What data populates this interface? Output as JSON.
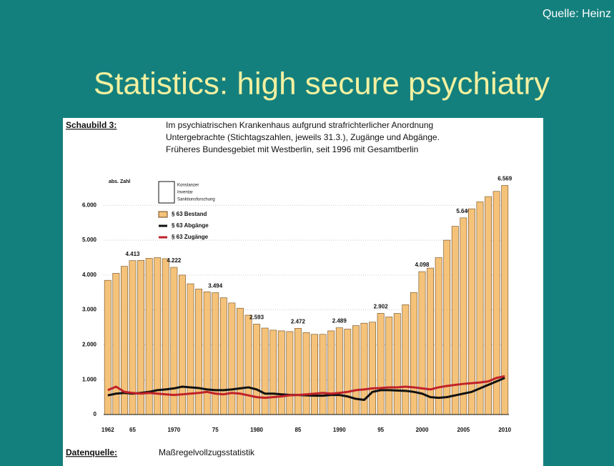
{
  "slide": {
    "source": "Quelle: Heinz",
    "title": "Statistics: high secure psychiatry"
  },
  "chart_data": {
    "type": "bar",
    "figure_label": "Schaubild 3:",
    "title_lines": [
      "Im psychiatrischen Krankenhaus aufgrund strafrichterlicher Anordnung",
      "Untergebrachte (Stichtagszahlen, jeweils 31.3.), Zugänge und Abgänge.",
      "Früheres Bundesgebiet mit Westberlin, seit 1996 mit Gesamtberlin"
    ],
    "y_label": "abs. Zahl",
    "logo": [
      "Konstanzer",
      "Inventar",
      "Sanktionsforschung"
    ],
    "categories": [
      "1962",
      null,
      null,
      "65",
      null,
      null,
      null,
      null,
      "1970",
      null,
      null,
      null,
      null,
      "75",
      null,
      null,
      null,
      null,
      "1980",
      null,
      null,
      null,
      null,
      "85",
      null,
      null,
      null,
      null,
      "1990",
      null,
      null,
      null,
      null,
      "95",
      null,
      null,
      null,
      null,
      "2000",
      null,
      null,
      null,
      null,
      "2005",
      null,
      null,
      null,
      null,
      "2010"
    ],
    "series": [
      {
        "name": "§ 63 Bestand",
        "type": "bar",
        "color": "#f5c27a",
        "values": [
          3850,
          4050,
          4250,
          4413,
          4420,
          4480,
          4500,
          4470,
          4222,
          4000,
          3750,
          3600,
          3520,
          3494,
          3350,
          3200,
          3050,
          2850,
          2593,
          2480,
          2420,
          2400,
          2380,
          2472,
          2350,
          2300,
          2300,
          2400,
          2489,
          2450,
          2550,
          2620,
          2650,
          2902,
          2800,
          2900,
          3150,
          3500,
          4098,
          4200,
          4500,
          5000,
          5400,
          5640,
          5900,
          6100,
          6250,
          6400,
          6569
        ],
        "value_labels": [
          null,
          null,
          null,
          "4.413",
          null,
          null,
          null,
          null,
          "4.222",
          null,
          null,
          null,
          null,
          "3.494",
          null,
          null,
          null,
          null,
          "2.593",
          null,
          null,
          null,
          null,
          "2.472",
          null,
          null,
          null,
          null,
          "2.489",
          null,
          null,
          null,
          null,
          "2.902",
          null,
          null,
          null,
          null,
          "4.098",
          null,
          null,
          null,
          null,
          "5.640",
          null,
          null,
          null,
          null,
          "6.569"
        ]
      },
      {
        "name": "§ 63 Abgänge",
        "type": "line",
        "color": "#111111",
        "values": [
          550,
          600,
          620,
          600,
          620,
          650,
          700,
          720,
          750,
          800,
          780,
          760,
          720,
          700,
          700,
          720,
          750,
          780,
          720,
          600,
          600,
          580,
          560,
          560,
          550,
          540,
          540,
          560,
          560,
          520,
          450,
          420,
          650,
          700,
          700,
          690,
          680,
          650,
          600,
          500,
          480,
          500,
          550,
          600,
          650,
          750,
          850,
          950,
          1050
        ]
      },
      {
        "name": "§ 63 Zugänge",
        "type": "line",
        "color": "#c0222a",
        "values": [
          700,
          800,
          650,
          620,
          600,
          620,
          600,
          580,
          560,
          580,
          600,
          620,
          650,
          600,
          580,
          620,
          600,
          550,
          500,
          480,
          500,
          520,
          550,
          560,
          580,
          600,
          620,
          600,
          620,
          650,
          700,
          720,
          750,
          760,
          780,
          780,
          800,
          780,
          750,
          720,
          780,
          820,
          850,
          880,
          900,
          920,
          950,
          1050,
          1100
        ]
      }
    ],
    "ylim": [
      0,
      6600
    ],
    "yticks": [
      0,
      {
        "value": 1000,
        "label": "1.000"
      },
      {
        "value": 2000,
        "label": "2.000"
      },
      {
        "value": 3000,
        "label": "3.000"
      },
      {
        "value": 4000,
        "label": "4.000"
      },
      {
        "value": 5000,
        "label": "5.000"
      },
      {
        "value": 6000,
        "label": "6.000"
      }
    ],
    "grid": true,
    "data_source_label": "Datenquelle:",
    "data_source": "Maßregelvollzugsstatistik"
  }
}
